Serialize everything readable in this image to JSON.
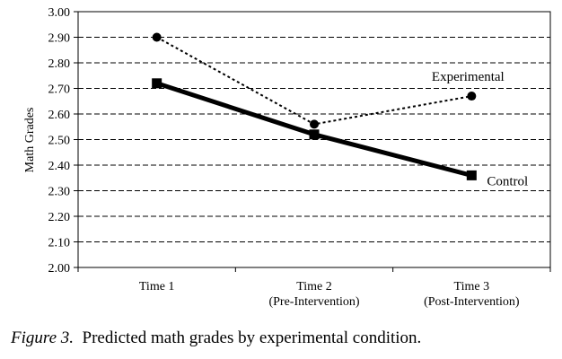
{
  "chart_data": {
    "type": "line",
    "categories": [
      [
        "Time 1"
      ],
      [
        "Time 2",
        "(Pre-Intervention)"
      ],
      [
        "Time 3",
        "(Post-Intervention)"
      ]
    ],
    "ylabel": "Math Grades",
    "ylim": [
      2.0,
      3.0
    ],
    "yticks": [
      "2.00",
      "2.10",
      "2.20",
      "2.30",
      "2.40",
      "2.50",
      "2.60",
      "2.70",
      "2.80",
      "2.90",
      "3.00"
    ],
    "grid": "horizontal dashed",
    "series": [
      {
        "name": "Experimental",
        "values": [
          2.9,
          2.56,
          2.67
        ],
        "marker": "circle",
        "line": "dotted",
        "color": "#000000"
      },
      {
        "name": "Control",
        "values": [
          2.72,
          2.52,
          2.36
        ],
        "marker": "square",
        "line": "solid-thick",
        "color": "#000000"
      }
    ]
  },
  "caption": {
    "label": "Figure 3.",
    "text": "Predicted math grades by experimental condition."
  }
}
